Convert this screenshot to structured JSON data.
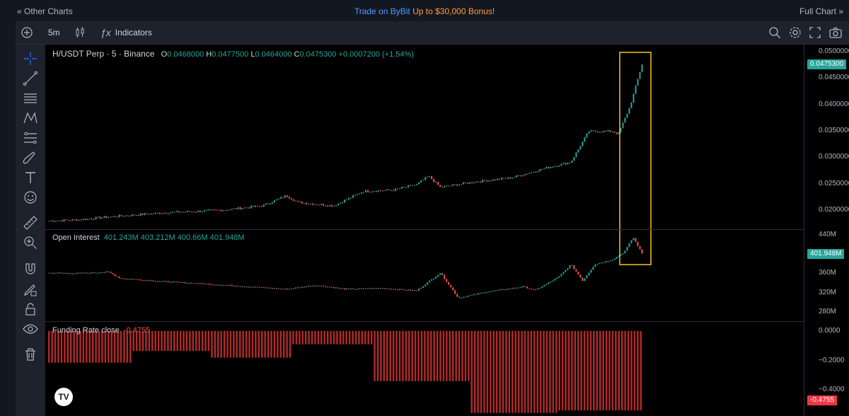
{
  "topbar": {
    "left_link": "« Other Charts",
    "promo_a": "Trade on ByBit",
    "promo_b": "Up to $30,000 Bonus!",
    "right_link": "Full Chart »"
  },
  "toolbar": {
    "interval": "5m",
    "indicators_label": "Indicators"
  },
  "price_pane": {
    "symbol": "H/USDT Perp · 5 · Binance",
    "o_key": "O",
    "o_val": "0.0468000",
    "h_key": "H",
    "h_val": "0.0477500",
    "l_key": "L",
    "l_val": "0.0464000",
    "c_key": "C",
    "c_val": "0.0475300",
    "change": "+0.0007200 (+1.54%)",
    "axis_labels": [
      "0.0500000",
      "0.0450000",
      "0.0400000",
      "0.0350000",
      "0.0300000",
      "0.0250000",
      "0.0200000"
    ],
    "last_price_tag": "0.0475300"
  },
  "oi_pane": {
    "title": "Open Interest",
    "values": "401.243M  403.212M  400.66M  401.948M",
    "axis_labels": [
      "440M",
      "360M",
      "320M",
      "280M"
    ],
    "last_tag": "401.948M"
  },
  "funding_pane": {
    "title": "Funding Rate close",
    "value": "-0.4755",
    "axis_labels": [
      "0.0000",
      "−0.2000",
      "−0.4000"
    ],
    "last_tag": "-0.4755"
  },
  "colors": {
    "up": "#26a69a",
    "down": "#ef5350",
    "highlight_box": "#f5c518",
    "funding_bar": "#b22a2a"
  },
  "icons": [
    "plus-circle-icon",
    "candles-icon",
    "fx-icon",
    "crosshair-icon",
    "trend-line-icon",
    "fib-icon",
    "pattern-icon",
    "projection-icon",
    "brush-icon",
    "text-icon",
    "emoji-icon",
    "ruler-icon",
    "zoom-in-icon",
    "magnet-icon",
    "lock-draw-icon",
    "lock-icon",
    "eye-icon",
    "trash-icon",
    "search-icon",
    "gear-icon",
    "fullscreen-icon",
    "camera-icon"
  ],
  "chart_data": {
    "type": "candlestick",
    "panes": [
      {
        "name": "Price",
        "ylim": [
          0.018,
          0.051
        ],
        "path": [
          [
            0,
            0.0195
          ],
          [
            0.05,
            0.0197
          ],
          [
            0.1,
            0.0202
          ],
          [
            0.15,
            0.0206
          ],
          [
            0.2,
            0.021
          ],
          [
            0.25,
            0.0212
          ],
          [
            0.3,
            0.0215
          ],
          [
            0.36,
            0.0222
          ],
          [
            0.4,
            0.024
          ],
          [
            0.42,
            0.0228
          ],
          [
            0.48,
            0.0222
          ],
          [
            0.53,
            0.0248
          ],
          [
            0.58,
            0.025
          ],
          [
            0.62,
            0.026
          ],
          [
            0.64,
            0.0275
          ],
          [
            0.66,
            0.0255
          ],
          [
            0.72,
            0.0265
          ],
          [
            0.78,
            0.0272
          ],
          [
            0.84,
            0.029
          ],
          [
            0.88,
            0.03
          ],
          [
            0.91,
            0.0355
          ],
          [
            0.95,
            0.0355
          ],
          [
            0.96,
            0.035
          ],
          [
            0.98,
            0.04
          ],
          [
            1.0,
            0.0475
          ]
        ]
      },
      {
        "name": "Open Interest",
        "ylim": [
          265,
          450
        ],
        "path": [
          [
            0,
            363
          ],
          [
            0.05,
            362
          ],
          [
            0.1,
            365
          ],
          [
            0.12,
            352
          ],
          [
            0.2,
            345
          ],
          [
            0.3,
            338
          ],
          [
            0.4,
            330
          ],
          [
            0.45,
            338
          ],
          [
            0.5,
            330
          ],
          [
            0.56,
            332
          ],
          [
            0.62,
            327
          ],
          [
            0.66,
            363
          ],
          [
            0.69,
            312
          ],
          [
            0.74,
            325
          ],
          [
            0.8,
            335
          ],
          [
            0.82,
            328
          ],
          [
            0.86,
            355
          ],
          [
            0.88,
            380
          ],
          [
            0.9,
            347
          ],
          [
            0.92,
            380
          ],
          [
            0.95,
            390
          ],
          [
            0.97,
            405
          ],
          [
            0.985,
            435
          ],
          [
            1.0,
            402
          ]
        ]
      },
      {
        "name": "Funding Rate",
        "ylim": [
          -0.5,
          0.02
        ],
        "steps": [
          [
            0,
            0.14,
            -0.19
          ],
          [
            0.14,
            0.275,
            -0.12
          ],
          [
            0.275,
            0.41,
            -0.16
          ],
          [
            0.41,
            0.55,
            -0.08
          ],
          [
            0.55,
            0.71,
            -0.3
          ],
          [
            0.71,
            0.86,
            -0.49
          ],
          [
            0.86,
            1.0,
            -0.475
          ]
        ]
      }
    ]
  }
}
